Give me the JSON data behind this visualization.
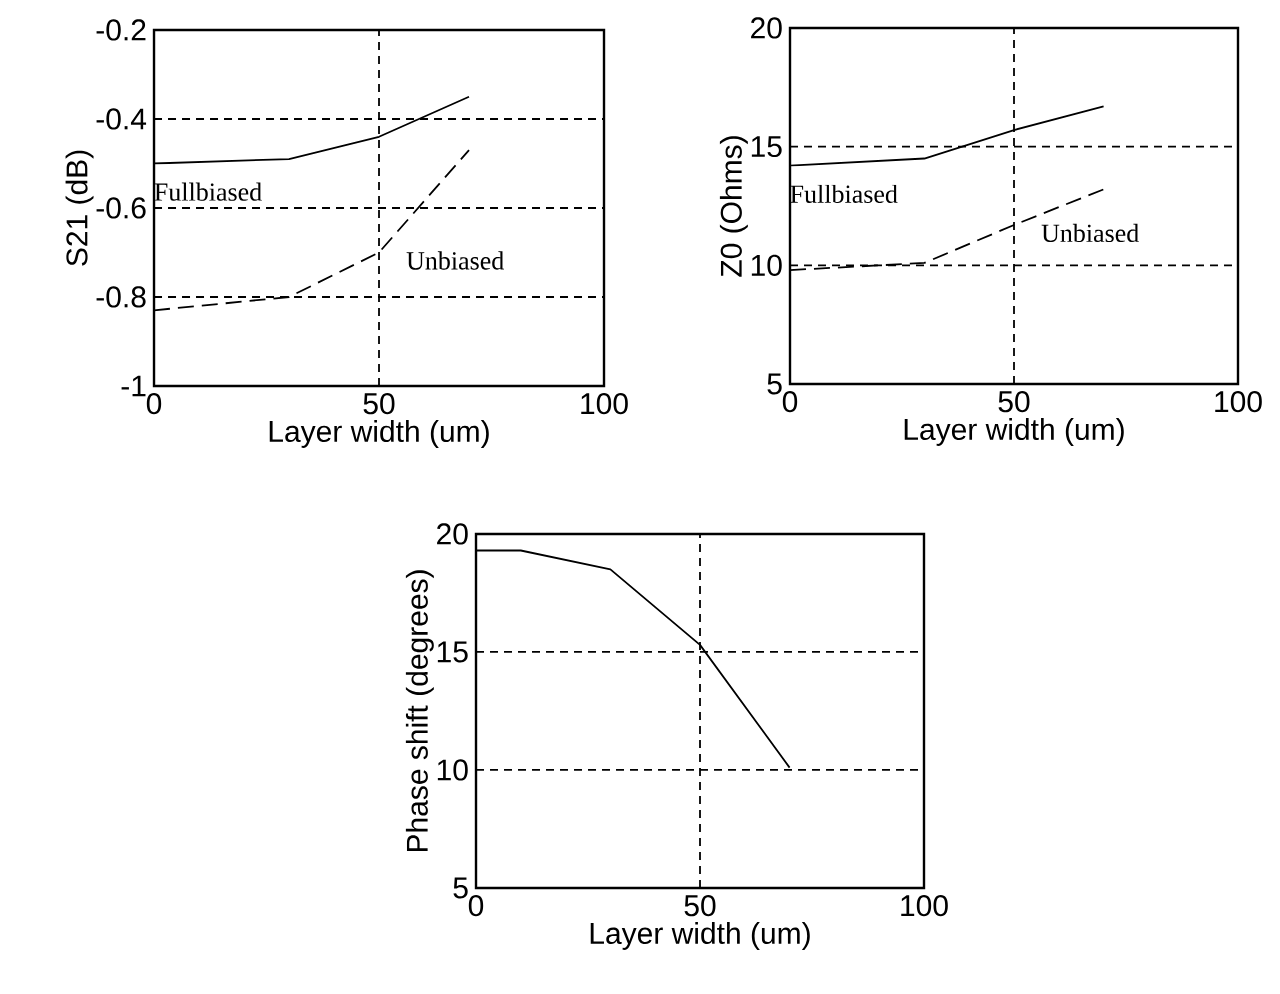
{
  "chart_data": [
    {
      "type": "line",
      "xlabel": "Layer width (um)",
      "ylabel": "S21 (dB)",
      "xlim": [
        0,
        100
      ],
      "xticks": [
        0,
        50,
        100
      ],
      "ylim": [
        -1,
        -0.2
      ],
      "yticks": [
        -1,
        -0.8,
        -0.6,
        -0.4,
        -0.2
      ],
      "grid": true,
      "x": [
        0,
        30,
        50,
        70
      ],
      "series": [
        {
          "name": "Fullbiased",
          "color": "#000000",
          "line_style": "solid",
          "values": [
            -0.5,
            -0.49,
            -0.44,
            -0.35
          ]
        },
        {
          "name": "Unbiased",
          "color": "#000000",
          "line_style": "dashed",
          "values": [
            -0.83,
            -0.8,
            -0.7,
            -0.47
          ]
        }
      ]
    },
    {
      "type": "line",
      "xlabel": "Layer width (um)",
      "ylabel": "Z0 (Ohms)",
      "xlim": [
        0,
        100
      ],
      "xticks": [
        0,
        50,
        100
      ],
      "ylim": [
        5,
        20
      ],
      "yticks": [
        5,
        10,
        15,
        20
      ],
      "grid": true,
      "x": [
        0,
        30,
        50,
        70
      ],
      "series": [
        {
          "name": "Fullbiased",
          "color": "#000000",
          "line_style": "solid",
          "values": [
            14.2,
            14.5,
            15.7,
            16.7
          ]
        },
        {
          "name": "Unbiased",
          "color": "#000000",
          "line_style": "dashed",
          "values": [
            9.8,
            10.1,
            11.7,
            13.2
          ]
        }
      ]
    },
    {
      "type": "line",
      "xlabel": "Layer width (um)",
      "ylabel": "Phase shift (degrees)",
      "xlim": [
        0,
        100
      ],
      "xticks": [
        0,
        50,
        100
      ],
      "ylim": [
        5,
        20
      ],
      "yticks": [
        5,
        10,
        15,
        20
      ],
      "grid": true,
      "x": [
        0,
        10,
        30,
        50,
        70
      ],
      "series": [
        {
          "color": "#000000",
          "line_style": "solid",
          "values": [
            19.3,
            19.3,
            18.5,
            15.3,
            10.1
          ]
        }
      ]
    }
  ]
}
